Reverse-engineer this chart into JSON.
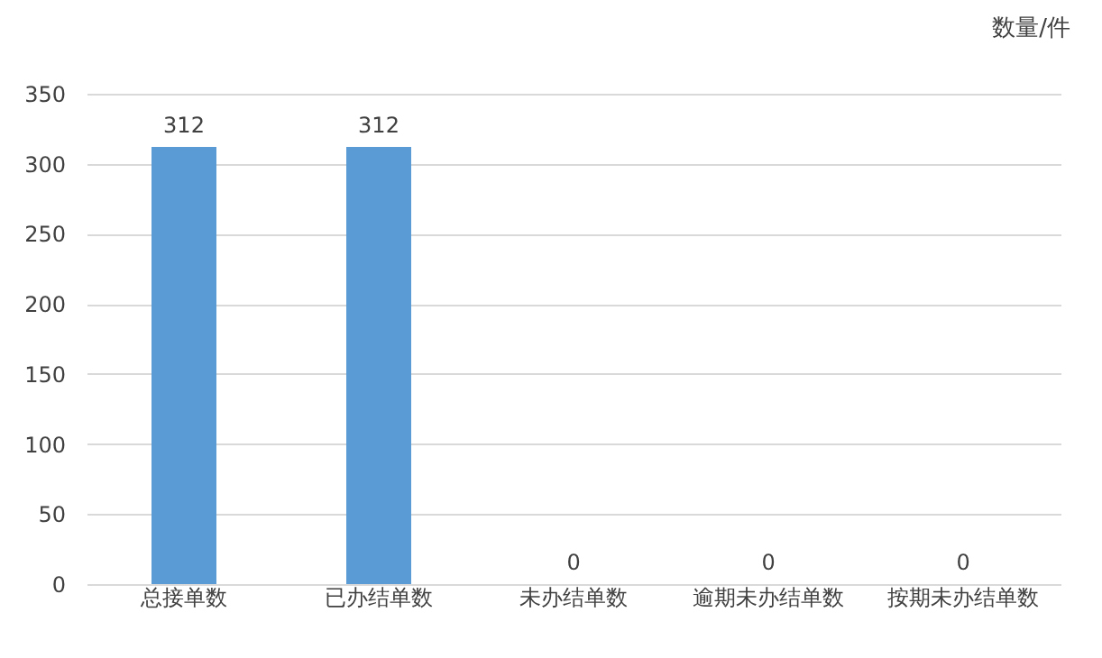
{
  "chart_data": {
    "type": "bar",
    "ylabel": "数量/件",
    "categories": [
      "总接单数",
      "已办结单数",
      "未办结单数",
      "逾期未办结单数",
      "按期未办结单数"
    ],
    "values": [
      312,
      312,
      0,
      0,
      0
    ],
    "color": "#5b9bd5",
    "ylim": [
      0,
      350
    ],
    "yticks": [
      0,
      50,
      100,
      150,
      200,
      250,
      300,
      350
    ],
    "grid": "y",
    "data_labels": true
  }
}
